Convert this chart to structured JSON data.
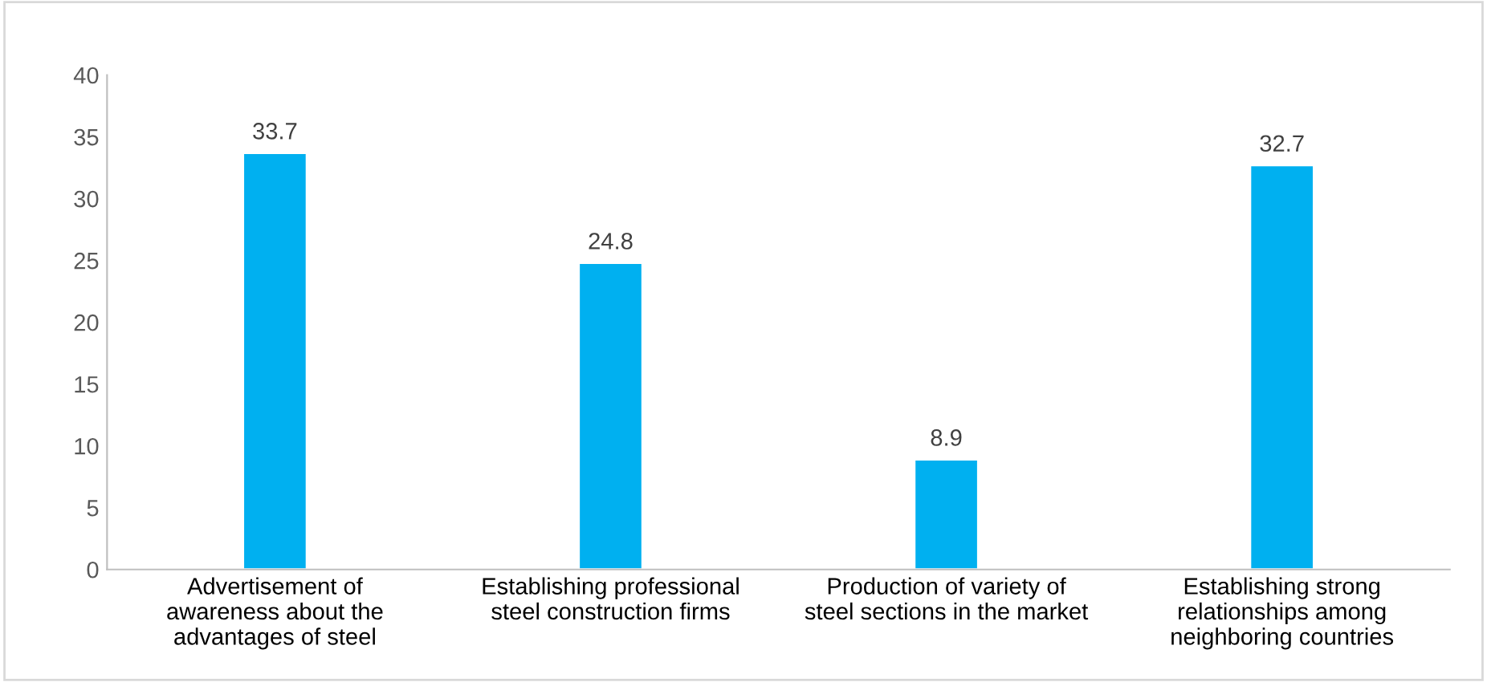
{
  "chart_data": {
    "type": "bar",
    "categories": [
      "Advertisement of\nawareness about the\nadvantages of steel",
      "Establishing professional\nsteel construction firms",
      "Production of variety of\nsteel sections in the market",
      "Establishing strong\nrelationships among\nneighboring countries"
    ],
    "values": [
      33.7,
      24.8,
      8.9,
      32.7
    ],
    "color": "#00b0f0",
    "ylim": [
      0,
      40
    ],
    "yticks": [
      0,
      5,
      10,
      15,
      20,
      25,
      30,
      35,
      40
    ],
    "grid": false,
    "data_labels": true
  }
}
